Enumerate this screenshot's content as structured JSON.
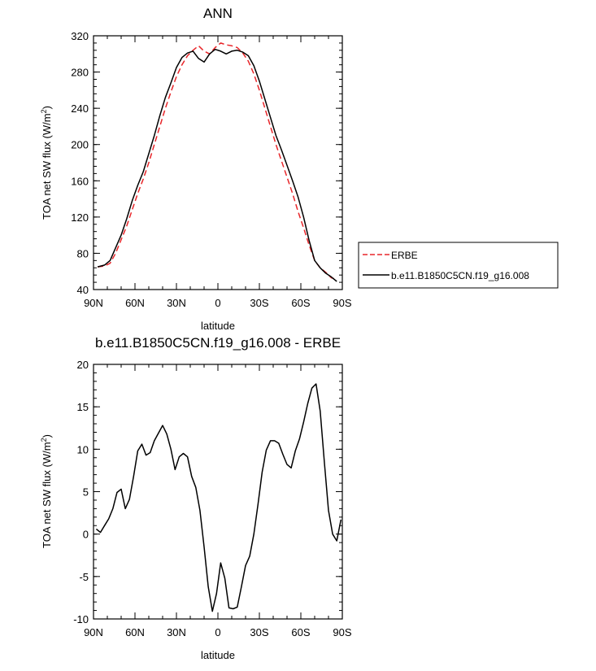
{
  "chart_data": [
    {
      "type": "line",
      "title": "ANN",
      "xlabel": "latitude",
      "ylabel_main": "TOA net SW flux (W/m",
      "ylabel_sup": "2",
      "ylabel_tail": ")",
      "xlim": [
        90,
        -90
      ],
      "ylim": [
        40,
        320
      ],
      "xticks": [
        90,
        60,
        30,
        0,
        -30,
        -60,
        -90
      ],
      "xticklabels": [
        "90N",
        "60N",
        "30N",
        "0",
        "30S",
        "60S",
        "90S"
      ],
      "yticks": [
        40,
        80,
        120,
        160,
        200,
        240,
        280,
        320
      ],
      "legend_position": "right",
      "series": [
        {
          "name": "ERBE",
          "color": "#e8262a",
          "dash": "dashed",
          "x": [
            87,
            82,
            78,
            74,
            70,
            66,
            62,
            58,
            54,
            50,
            46,
            42,
            38,
            34,
            30,
            26,
            22,
            18,
            14,
            10,
            6,
            2,
            -2,
            -6,
            -10,
            -14,
            -18,
            -22,
            -26,
            -30,
            -34,
            -38,
            -42,
            -46,
            -50,
            -54,
            -58,
            -62,
            -66,
            -70,
            -74,
            -78,
            -82,
            -86
          ],
          "y": [
            65,
            66,
            69,
            80,
            95,
            110,
            128,
            146,
            162,
            180,
            200,
            220,
            240,
            258,
            275,
            288,
            298,
            304,
            309,
            303,
            300,
            307,
            312,
            310,
            309,
            307,
            301,
            292,
            278,
            260,
            240,
            220,
            200,
            182,
            164,
            146,
            126,
            108,
            89,
            72,
            64,
            59,
            53,
            51
          ]
        },
        {
          "name": "b.e11.B1850C5CN.f19_g16.008",
          "color": "#000000",
          "dash": "solid",
          "x": [
            87,
            82,
            78,
            74,
            70,
            66,
            62,
            58,
            54,
            50,
            46,
            42,
            38,
            34,
            30,
            26,
            22,
            18,
            14,
            10,
            6,
            2,
            -2,
            -6,
            -10,
            -14,
            -18,
            -22,
            -26,
            -30,
            -34,
            -38,
            -42,
            -46,
            -50,
            -54,
            -58,
            -62,
            -66,
            -70,
            -74,
            -78,
            -82,
            -86
          ],
          "y": [
            65,
            67,
            72,
            86,
            100,
            118,
            138,
            155,
            170,
            190,
            210,
            232,
            252,
            268,
            285,
            296,
            301,
            303,
            295,
            291,
            300,
            305,
            303,
            300,
            303,
            304,
            302,
            298,
            287,
            270,
            250,
            230,
            210,
            194,
            177,
            160,
            142,
            120,
            94,
            72,
            64,
            58,
            54,
            49
          ]
        }
      ]
    },
    {
      "type": "line",
      "title": "b.e11.B1850C5CN.f19_g16.008 - ERBE",
      "xlabel": "latitude",
      "ylabel_main": "TOA net SW flux (W/m",
      "ylabel_sup": "2",
      "ylabel_tail": ")",
      "xlim": [
        90,
        -90
      ],
      "ylim": [
        -10,
        20
      ],
      "xticks": [
        90,
        60,
        30,
        0,
        -30,
        -60,
        -90
      ],
      "xticklabels": [
        "90N",
        "60N",
        "30N",
        "0",
        "30S",
        "60S",
        "90S"
      ],
      "yticks": [
        -10,
        -5,
        0,
        5,
        10,
        15,
        20
      ],
      "series": [
        {
          "name": "",
          "color": "#000000",
          "dash": "solid",
          "x": [
            88,
            85,
            82,
            79,
            76,
            73,
            70,
            67,
            64,
            61,
            58,
            55,
            52,
            49,
            46,
            43,
            40,
            37,
            34,
            31,
            28,
            25,
            22,
            19,
            16,
            13,
            10,
            7,
            4,
            1,
            -2,
            -5,
            -8,
            -11,
            -14,
            -17,
            -20,
            -23,
            -26,
            -29,
            -32,
            -35,
            -38,
            -41,
            -44,
            -47,
            -50,
            -53,
            -56,
            -59,
            -62,
            -65,
            -68,
            -71,
            -74,
            -77,
            -80,
            -83,
            -86,
            -89
          ],
          "y": [
            0.6,
            0.2,
            1.0,
            1.8,
            3.0,
            4.9,
            5.3,
            3.0,
            4.1,
            6.8,
            9.8,
            10.6,
            9.3,
            9.6,
            11.0,
            11.9,
            12.8,
            11.8,
            10.0,
            7.6,
            9.1,
            9.5,
            9.1,
            6.8,
            5.5,
            2.8,
            -1.5,
            -6.2,
            -9.1,
            -7.0,
            -3.4,
            -5.2,
            -8.7,
            -8.8,
            -8.6,
            -6.2,
            -3.7,
            -2.6,
            0.0,
            3.5,
            7.3,
            9.9,
            11.0,
            11.0,
            10.7,
            9.4,
            8.2,
            7.8,
            9.8,
            11.2,
            13.2,
            15.4,
            17.2,
            17.7,
            14.5,
            8.5,
            2.8,
            0.0,
            -0.8,
            1.7
          ]
        }
      ]
    }
  ]
}
